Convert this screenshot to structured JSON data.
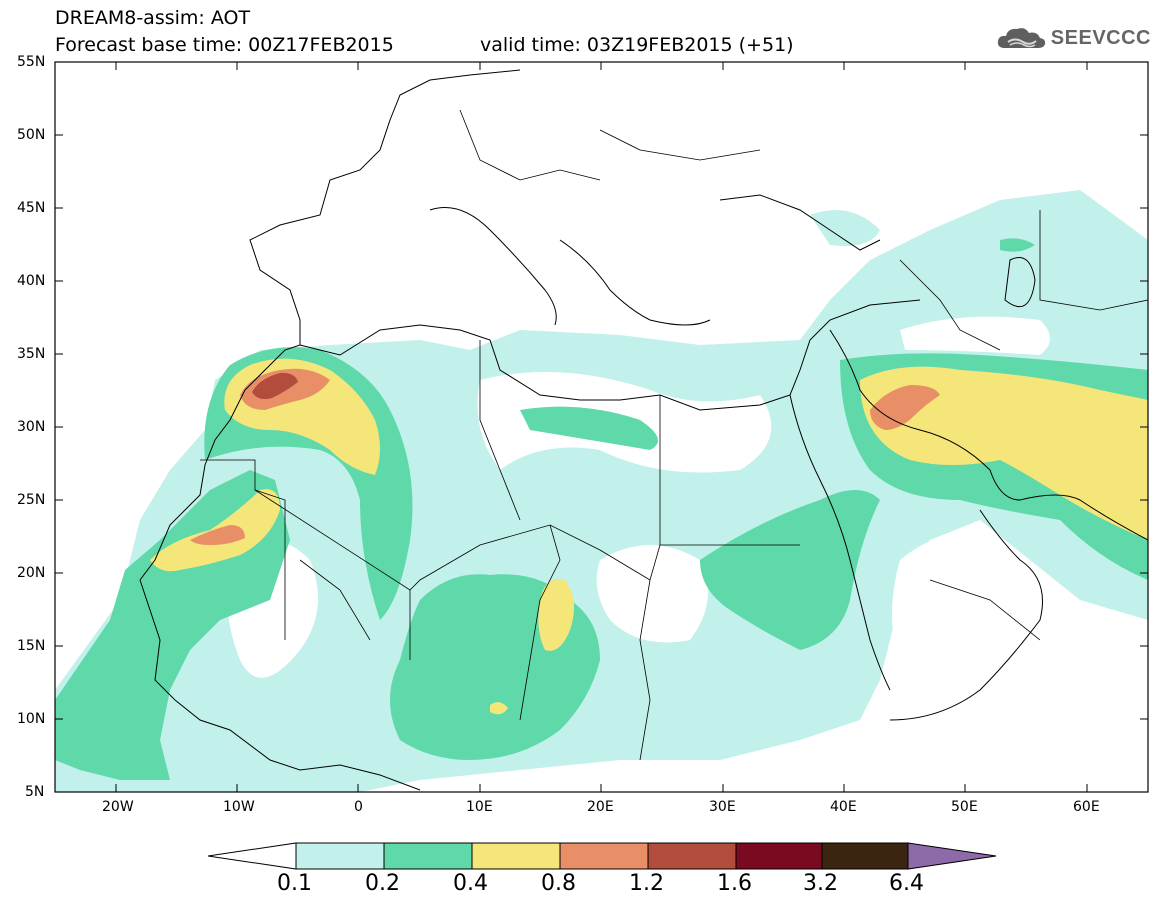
{
  "header": {
    "line1": "DREAM8-assim: AOT",
    "line2": "Forecast base time: 00Z17FEB2015",
    "valid": "valid time: 03Z19FEB2015 (+51)"
  },
  "logo": {
    "text": "SEEVCCC",
    "icon": "cloud-icon"
  },
  "map": {
    "lat_labels": [
      "55N",
      "50N",
      "45N",
      "40N",
      "35N",
      "30N",
      "25N",
      "20N",
      "15N",
      "10N",
      "5N"
    ],
    "lon_labels": [
      "20W",
      "10W",
      "0",
      "10E",
      "20E",
      "30E",
      "40E",
      "50E",
      "60E"
    ],
    "lon_range": [
      -25,
      65
    ],
    "lat_range": [
      5,
      55
    ],
    "field": "AOT"
  },
  "colorbar": {
    "thresholds": [
      "0.1",
      "0.2",
      "0.4",
      "0.8",
      "1.2",
      "1.6",
      "3.2",
      "6.4"
    ],
    "colors": {
      "low_end": "#ffffff",
      "c1": "#c2f0ea",
      "c2": "#5fd8aa",
      "c3": "#f5e67a",
      "c4": "#e98f67",
      "c5": "#b24d3e",
      "c6": "#7a0a20",
      "c7": "#3b2410",
      "high_end": "#8e6aa8"
    }
  }
}
